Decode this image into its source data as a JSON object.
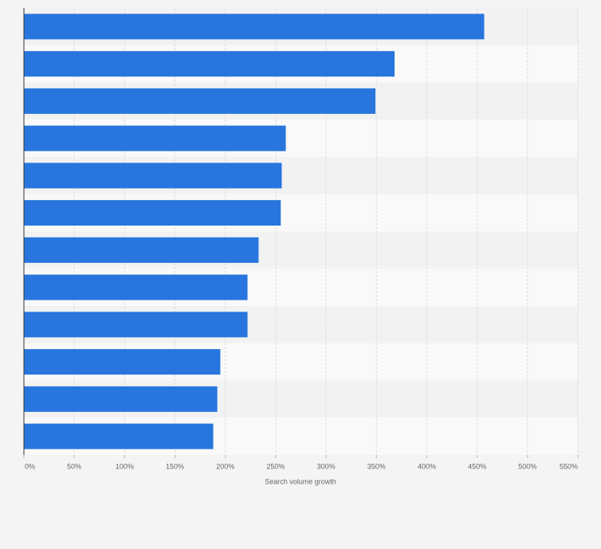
{
  "chart_data": {
    "type": "bar",
    "orientation": "horizontal",
    "categories": [
      null,
      null,
      null,
      null,
      null,
      null,
      null,
      null,
      null,
      null,
      null,
      null
    ],
    "values": [
      457,
      368,
      349,
      260,
      256,
      255,
      233,
      222,
      222,
      195,
      192,
      188
    ],
    "color": "#2876dd",
    "xlabel": "Search volume growth",
    "xlim": [
      0,
      550
    ],
    "xticks": [
      {
        "value": 0,
        "label": "0%"
      },
      {
        "value": 50,
        "label": "50%"
      },
      {
        "value": 100,
        "label": "100%"
      },
      {
        "value": 150,
        "label": "150%"
      },
      {
        "value": 200,
        "label": "200%"
      },
      {
        "value": 250,
        "label": "250%"
      },
      {
        "value": 300,
        "label": "300%"
      },
      {
        "value": 350,
        "label": "350%"
      },
      {
        "value": 400,
        "label": "400%"
      },
      {
        "value": 450,
        "label": "450%"
      },
      {
        "value": 500,
        "label": "500%"
      },
      {
        "value": 550,
        "label": "550%"
      }
    ],
    "grid": true
  }
}
